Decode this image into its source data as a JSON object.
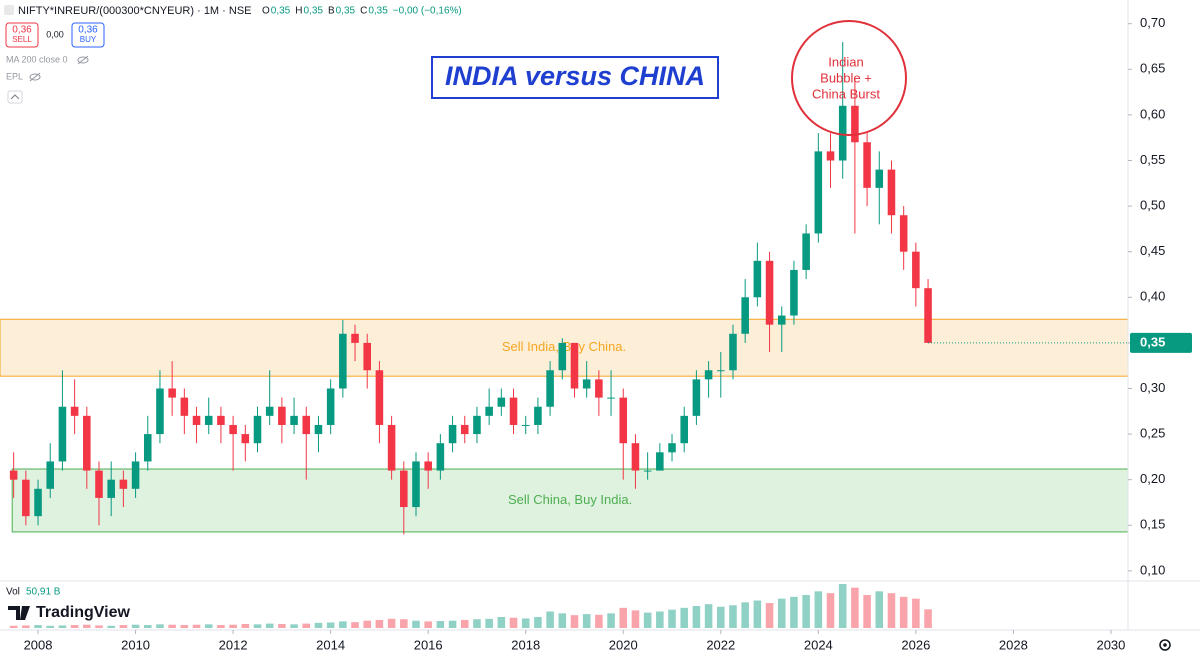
{
  "chart_data": {
    "type": "candlestick",
    "title": "INDIA versus CHINA",
    "symbol": "NIFTY*INREUR/(000300*CNYEUR) · 1M · NSE",
    "ohlc_legend": [
      "O",
      "0,35",
      "H",
      "0,35",
      "B",
      "0,35",
      "C",
      "0,35",
      "−0,00 (−0,16%)"
    ],
    "trade_buttons": {
      "sell_price": "0,36",
      "sell_label": "SELL",
      "spread": "0,00",
      "buy_price": "0,36",
      "buy_label": "BUY"
    },
    "indicators": [
      "MA 200 close 0",
      "EPL"
    ],
    "volume_label": "Vol",
    "brand": "TradingView",
    "up_color": "#089981",
    "down_color": "#f23645",
    "grid": false,
    "xlim": [
      2007.22,
      2030.35
    ],
    "xticks": [
      2008,
      2010,
      2012,
      2014,
      2016,
      2018,
      2020,
      2022,
      2024,
      2026,
      2028,
      2030
    ],
    "ylim": [
      0.09,
      0.726
    ],
    "yticks": [
      {
        "value": 0.1,
        "label": "0,10"
      },
      {
        "value": 0.15,
        "label": "0,15"
      },
      {
        "value": 0.2,
        "label": "0,20"
      },
      {
        "value": 0.25,
        "label": "0,25"
      },
      {
        "value": 0.3,
        "label": "0,30"
      },
      {
        "value": 0.35,
        "label": "0,35"
      },
      {
        "value": 0.4,
        "label": "0,40"
      },
      {
        "value": 0.45,
        "label": "0,45"
      },
      {
        "value": 0.5,
        "label": "0,50"
      },
      {
        "value": 0.55,
        "label": "0,55"
      },
      {
        "value": 0.6,
        "label": "0,60"
      },
      {
        "value": 0.65,
        "label": "0,65"
      },
      {
        "value": 0.7,
        "label": "0,70"
      }
    ],
    "last_price": {
      "value": 0.35,
      "label": "0,35"
    },
    "zones": [
      {
        "label": "Sell India, Buy China.",
        "color": "#f5a623",
        "xstart": 2007.22,
        "ymin": 0.3135,
        "ymax": 0.3759
      },
      {
        "label": "Sell China, Buy India.",
        "color": "#4caf50",
        "xstart": 2007.47,
        "ymin": 0.1427,
        "ymax": 0.2117
      }
    ],
    "callout": {
      "lines": [
        "Indian",
        "Bubble +",
        "China Burst"
      ],
      "color": "#e0303a"
    },
    "x": [
      2007.5,
      2007.75,
      2008,
      2008.25,
      2008.5,
      2008.75,
      2009,
      2009.25,
      2009.5,
      2009.75,
      2010,
      2010.25,
      2010.5,
      2010.75,
      2011,
      2011.25,
      2011.5,
      2011.75,
      2012,
      2012.25,
      2012.5,
      2012.75,
      2013,
      2013.25,
      2013.5,
      2013.75,
      2014,
      2014.25,
      2014.5,
      2014.75,
      2015,
      2015.25,
      2015.5,
      2015.75,
      2016,
      2016.25,
      2016.5,
      2016.75,
      2017,
      2017.25,
      2017.5,
      2017.75,
      2018,
      2018.25,
      2018.5,
      2018.75,
      2019,
      2019.25,
      2019.5,
      2019.75,
      2020,
      2020.25,
      2020.5,
      2020.75,
      2021,
      2021.25,
      2021.5,
      2021.75,
      2022,
      2022.25,
      2022.5,
      2022.75,
      2023,
      2023.25,
      2023.5,
      2023.75,
      2024,
      2024.25,
      2024.5,
      2024.75,
      2025,
      2025.25,
      2025.5,
      2025.75,
      2026,
      2026.25
    ],
    "open": [
      0.21,
      0.2,
      0.16,
      0.19,
      0.22,
      0.28,
      0.27,
      0.21,
      0.18,
      0.2,
      0.19,
      0.22,
      0.25,
      0.3,
      0.29,
      0.27,
      0.26,
      0.27,
      0.26,
      0.25,
      0.24,
      0.27,
      0.28,
      0.26,
      0.27,
      0.25,
      0.26,
      0.3,
      0.36,
      0.35,
      0.32,
      0.26,
      0.21,
      0.17,
      0.22,
      0.21,
      0.24,
      0.26,
      0.25,
      0.27,
      0.28,
      0.29,
      0.26,
      0.26,
      0.28,
      0.32,
      0.35,
      0.3,
      0.31,
      0.29,
      0.29,
      0.24,
      0.21,
      0.21,
      0.23,
      0.24,
      0.27,
      0.31,
      0.32,
      0.32,
      0.36,
      0.4,
      0.44,
      0.37,
      0.38,
      0.43,
      0.47,
      0.56,
      0.55,
      0.61,
      0.57,
      0.52,
      0.54,
      0.49,
      0.45,
      0.41
    ],
    "high": [
      0.23,
      0.21,
      0.2,
      0.24,
      0.32,
      0.31,
      0.28,
      0.22,
      0.22,
      0.21,
      0.23,
      0.27,
      0.32,
      0.33,
      0.3,
      0.28,
      0.29,
      0.28,
      0.27,
      0.26,
      0.28,
      0.32,
      0.29,
      0.29,
      0.28,
      0.27,
      0.31,
      0.375,
      0.37,
      0.36,
      0.33,
      0.27,
      0.22,
      0.23,
      0.23,
      0.25,
      0.27,
      0.27,
      0.28,
      0.3,
      0.3,
      0.3,
      0.27,
      0.29,
      0.33,
      0.355,
      0.35,
      0.33,
      0.32,
      0.32,
      0.3,
      0.25,
      0.23,
      0.24,
      0.25,
      0.28,
      0.32,
      0.33,
      0.34,
      0.37,
      0.42,
      0.46,
      0.45,
      0.39,
      0.44,
      0.48,
      0.58,
      0.58,
      0.68,
      0.64,
      0.58,
      0.56,
      0.55,
      0.5,
      0.46,
      0.42
    ],
    "low": [
      0.18,
      0.15,
      0.15,
      0.18,
      0.21,
      0.25,
      0.19,
      0.15,
      0.16,
      0.17,
      0.18,
      0.21,
      0.24,
      0.27,
      0.25,
      0.24,
      0.25,
      0.24,
      0.21,
      0.22,
      0.23,
      0.26,
      0.24,
      0.25,
      0.2,
      0.23,
      0.25,
      0.29,
      0.33,
      0.3,
      0.24,
      0.2,
      0.14,
      0.16,
      0.19,
      0.2,
      0.23,
      0.24,
      0.24,
      0.26,
      0.27,
      0.25,
      0.25,
      0.25,
      0.27,
      0.31,
      0.29,
      0.29,
      0.27,
      0.27,
      0.2,
      0.19,
      0.2,
      0.21,
      0.22,
      0.23,
      0.26,
      0.29,
      0.29,
      0.31,
      0.35,
      0.39,
      0.34,
      0.34,
      0.37,
      0.42,
      0.46,
      0.52,
      0.53,
      0.47,
      0.5,
      0.48,
      0.47,
      0.43,
      0.39,
      0.35
    ],
    "close": [
      0.2,
      0.16,
      0.19,
      0.22,
      0.28,
      0.27,
      0.21,
      0.18,
      0.2,
      0.19,
      0.22,
      0.25,
      0.3,
      0.29,
      0.27,
      0.26,
      0.27,
      0.26,
      0.25,
      0.24,
      0.27,
      0.28,
      0.26,
      0.27,
      0.25,
      0.26,
      0.3,
      0.36,
      0.35,
      0.32,
      0.26,
      0.21,
      0.17,
      0.22,
      0.21,
      0.24,
      0.26,
      0.25,
      0.27,
      0.28,
      0.29,
      0.26,
      0.26,
      0.28,
      0.32,
      0.35,
      0.3,
      0.31,
      0.29,
      0.29,
      0.24,
      0.21,
      0.21,
      0.23,
      0.24,
      0.27,
      0.31,
      0.32,
      0.32,
      0.36,
      0.4,
      0.44,
      0.37,
      0.38,
      0.43,
      0.47,
      0.56,
      0.55,
      0.61,
      0.57,
      0.52,
      0.54,
      0.49,
      0.45,
      0.41,
      0.35
    ],
    "volume": [
      6,
      7,
      8,
      6,
      7,
      8,
      9,
      7,
      6,
      8,
      9,
      8,
      10,
      9,
      8,
      9,
      10,
      8,
      9,
      11,
      10,
      12,
      11,
      10,
      12,
      14,
      15,
      18,
      16,
      20,
      22,
      25,
      24,
      20,
      18,
      19,
      20,
      22,
      24,
      25,
      30,
      28,
      26,
      30,
      45,
      40,
      35,
      38,
      36,
      40,
      55,
      48,
      42,
      45,
      50,
      55,
      60,
      65,
      58,
      62,
      70,
      75,
      68,
      80,
      85,
      90,
      100,
      95,
      120,
      110,
      90,
      100,
      95,
      85,
      80,
      50.91
    ],
    "volume_value_labels": {
      "75": "50,91 B"
    }
  }
}
